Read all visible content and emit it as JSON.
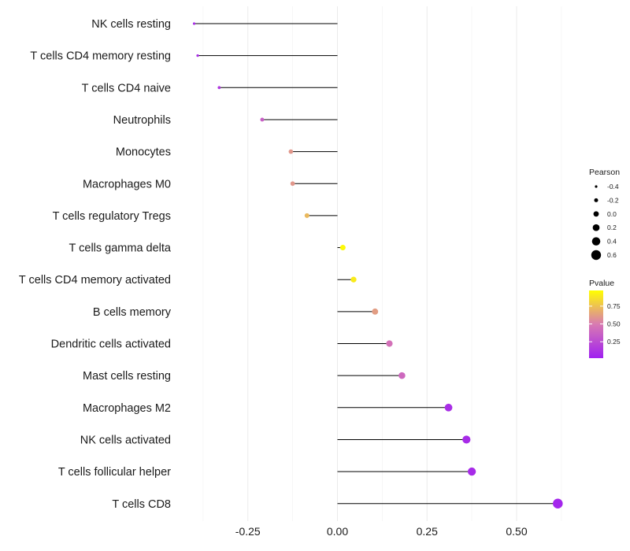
{
  "chart_data": {
    "type": "lollipop",
    "title": "",
    "xlabel": "",
    "ylabel": "",
    "xlim": [
      -0.45,
      0.64
    ],
    "x_ticks": [
      -0.25,
      0.0,
      0.25,
      0.5
    ],
    "x_tick_labels": [
      "-0.25",
      "0.00",
      "0.25",
      "0.50"
    ],
    "grid": true,
    "categories": [
      "NK cells resting",
      "T cells CD4 memory resting",
      "T cells CD4 naive",
      "Neutrophils",
      "Monocytes",
      "Macrophages M0",
      "T cells regulatory  Tregs ",
      "T cells gamma delta",
      "T cells CD4 memory activated",
      "B cells memory",
      "Dendritic cells activated",
      "Mast cells resting",
      "Macrophages M2",
      "NK cells activated",
      "T cells follicular helper",
      "T cells CD8"
    ],
    "values": [
      -0.4,
      -0.39,
      -0.33,
      -0.21,
      -0.13,
      -0.125,
      -0.085,
      0.015,
      0.045,
      0.105,
      0.145,
      0.18,
      0.31,
      0.36,
      0.375,
      0.615
    ],
    "pvalues": [
      0.1,
      0.1,
      0.15,
      0.35,
      0.6,
      0.6,
      0.72,
      0.95,
      0.9,
      0.62,
      0.45,
      0.4,
      0.1,
      0.08,
      0.08,
      0.05
    ],
    "legend": {
      "position": "right",
      "size_title": "Pearson",
      "size_values": [
        -0.4,
        -0.2,
        0.0,
        0.2,
        0.4,
        0.6
      ],
      "size_labels": [
        "-0.4",
        "-0.2",
        "0.0",
        "0.2",
        "0.4",
        "0.6"
      ],
      "color_title": "Pvalue",
      "color_ticks": [
        0.25,
        0.5,
        0.75
      ],
      "color_labels": [
        "0.25",
        "0.50",
        "0.75"
      ],
      "color_range": [
        0.02,
        0.97
      ]
    },
    "colors": {
      "low": "#a020f0",
      "mid": "#d87ab2",
      "high": "#ffff00",
      "segment": "#000000",
      "grid": "#ebebeb"
    }
  }
}
